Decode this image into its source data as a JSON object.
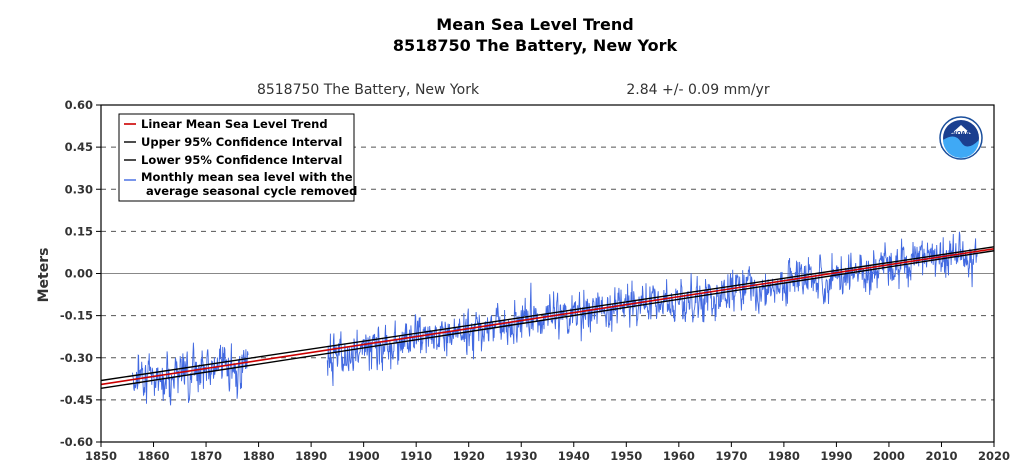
{
  "chart_data": {
    "type": "line",
    "title": "Mean Sea Level Trend",
    "subtitle": "8518750 The Battery, New York",
    "header_station": "8518750 The Battery, New York",
    "header_rate": "2.84 +/-  0.09 mm/yr",
    "ylabel": "Meters",
    "xlabel": "",
    "xlim": [
      1850,
      2020
    ],
    "ylim": [
      -0.6,
      0.6
    ],
    "x_ticks": [
      1850,
      1860,
      1870,
      1880,
      1890,
      1900,
      1910,
      1920,
      1930,
      1940,
      1950,
      1960,
      1970,
      1980,
      1990,
      2000,
      2010,
      2020
    ],
    "x_tick_labels": [
      "1850",
      "1860",
      "1870",
      "1880",
      "1890",
      "1900",
      "1910",
      "1920",
      "1930",
      "1940",
      "1950",
      "1960",
      "1970",
      "1980",
      "1990",
      "2000",
      "2010",
      "2020"
    ],
    "y_ticks": [
      0.6,
      0.45,
      0.3,
      0.15,
      0.0,
      -0.15,
      -0.3,
      -0.45,
      -0.6
    ],
    "y_tick_labels": [
      "0.60",
      "0.45",
      "0.30",
      "0.15",
      "0.00",
      "-0.15",
      "-0.30",
      "-0.45",
      "-0.60"
    ],
    "grid": "dashed horizontal",
    "legend_position": "top-left",
    "logo": "noaa-logo",
    "series": [
      {
        "name": "Linear Mean Sea Level Trend",
        "color": "#cc0000",
        "x": [
          1850,
          2020
        ],
        "y": [
          -0.395,
          0.088
        ]
      },
      {
        "name": "Upper 95% Confidence Interval",
        "color": "#000000",
        "x": [
          1850,
          2020
        ],
        "y": [
          -0.381,
          0.095
        ]
      },
      {
        "name": "Lower 95% Confidence Interval",
        "color": "#000000",
        "x": [
          1850,
          2020
        ],
        "y": [
          -0.409,
          0.081
        ]
      },
      {
        "name": "Monthly mean sea level with the",
        "name_line2": "average seasonal cycle removed",
        "color": "#4169e1",
        "segments": [
          {
            "start": 1856.0,
            "end": 1878.9
          },
          {
            "start": 1893.0,
            "end": 2016.9
          }
        ],
        "annual_means": {
          "x": [
            1856,
            1858,
            1860,
            1862,
            1864,
            1866,
            1868,
            1870,
            1872,
            1874,
            1876,
            1878,
            1893,
            1896,
            1900,
            1904,
            1908,
            1912,
            1916,
            1920,
            1924,
            1928,
            1932,
            1936,
            1940,
            1944,
            1948,
            1952,
            1956,
            1960,
            1964,
            1968,
            1972,
            1976,
            1980,
            1984,
            1988,
            1992,
            1996,
            2000,
            2004,
            2008,
            2012,
            2016
          ],
          "y": [
            -0.37,
            -0.36,
            -0.36,
            -0.37,
            -0.35,
            -0.36,
            -0.33,
            -0.34,
            -0.33,
            -0.35,
            -0.34,
            -0.33,
            -0.29,
            -0.28,
            -0.27,
            -0.26,
            -0.24,
            -0.23,
            -0.21,
            -0.2,
            -0.19,
            -0.18,
            -0.16,
            -0.15,
            -0.15,
            -0.13,
            -0.12,
            -0.1,
            -0.1,
            -0.09,
            -0.1,
            -0.08,
            -0.04,
            -0.05,
            -0.03,
            -0.01,
            -0.02,
            0.0,
            0.01,
            0.03,
            0.03,
            0.06,
            0.07,
            0.05
          ]
        },
        "monthly_spread": 0.07
      }
    ]
  }
}
